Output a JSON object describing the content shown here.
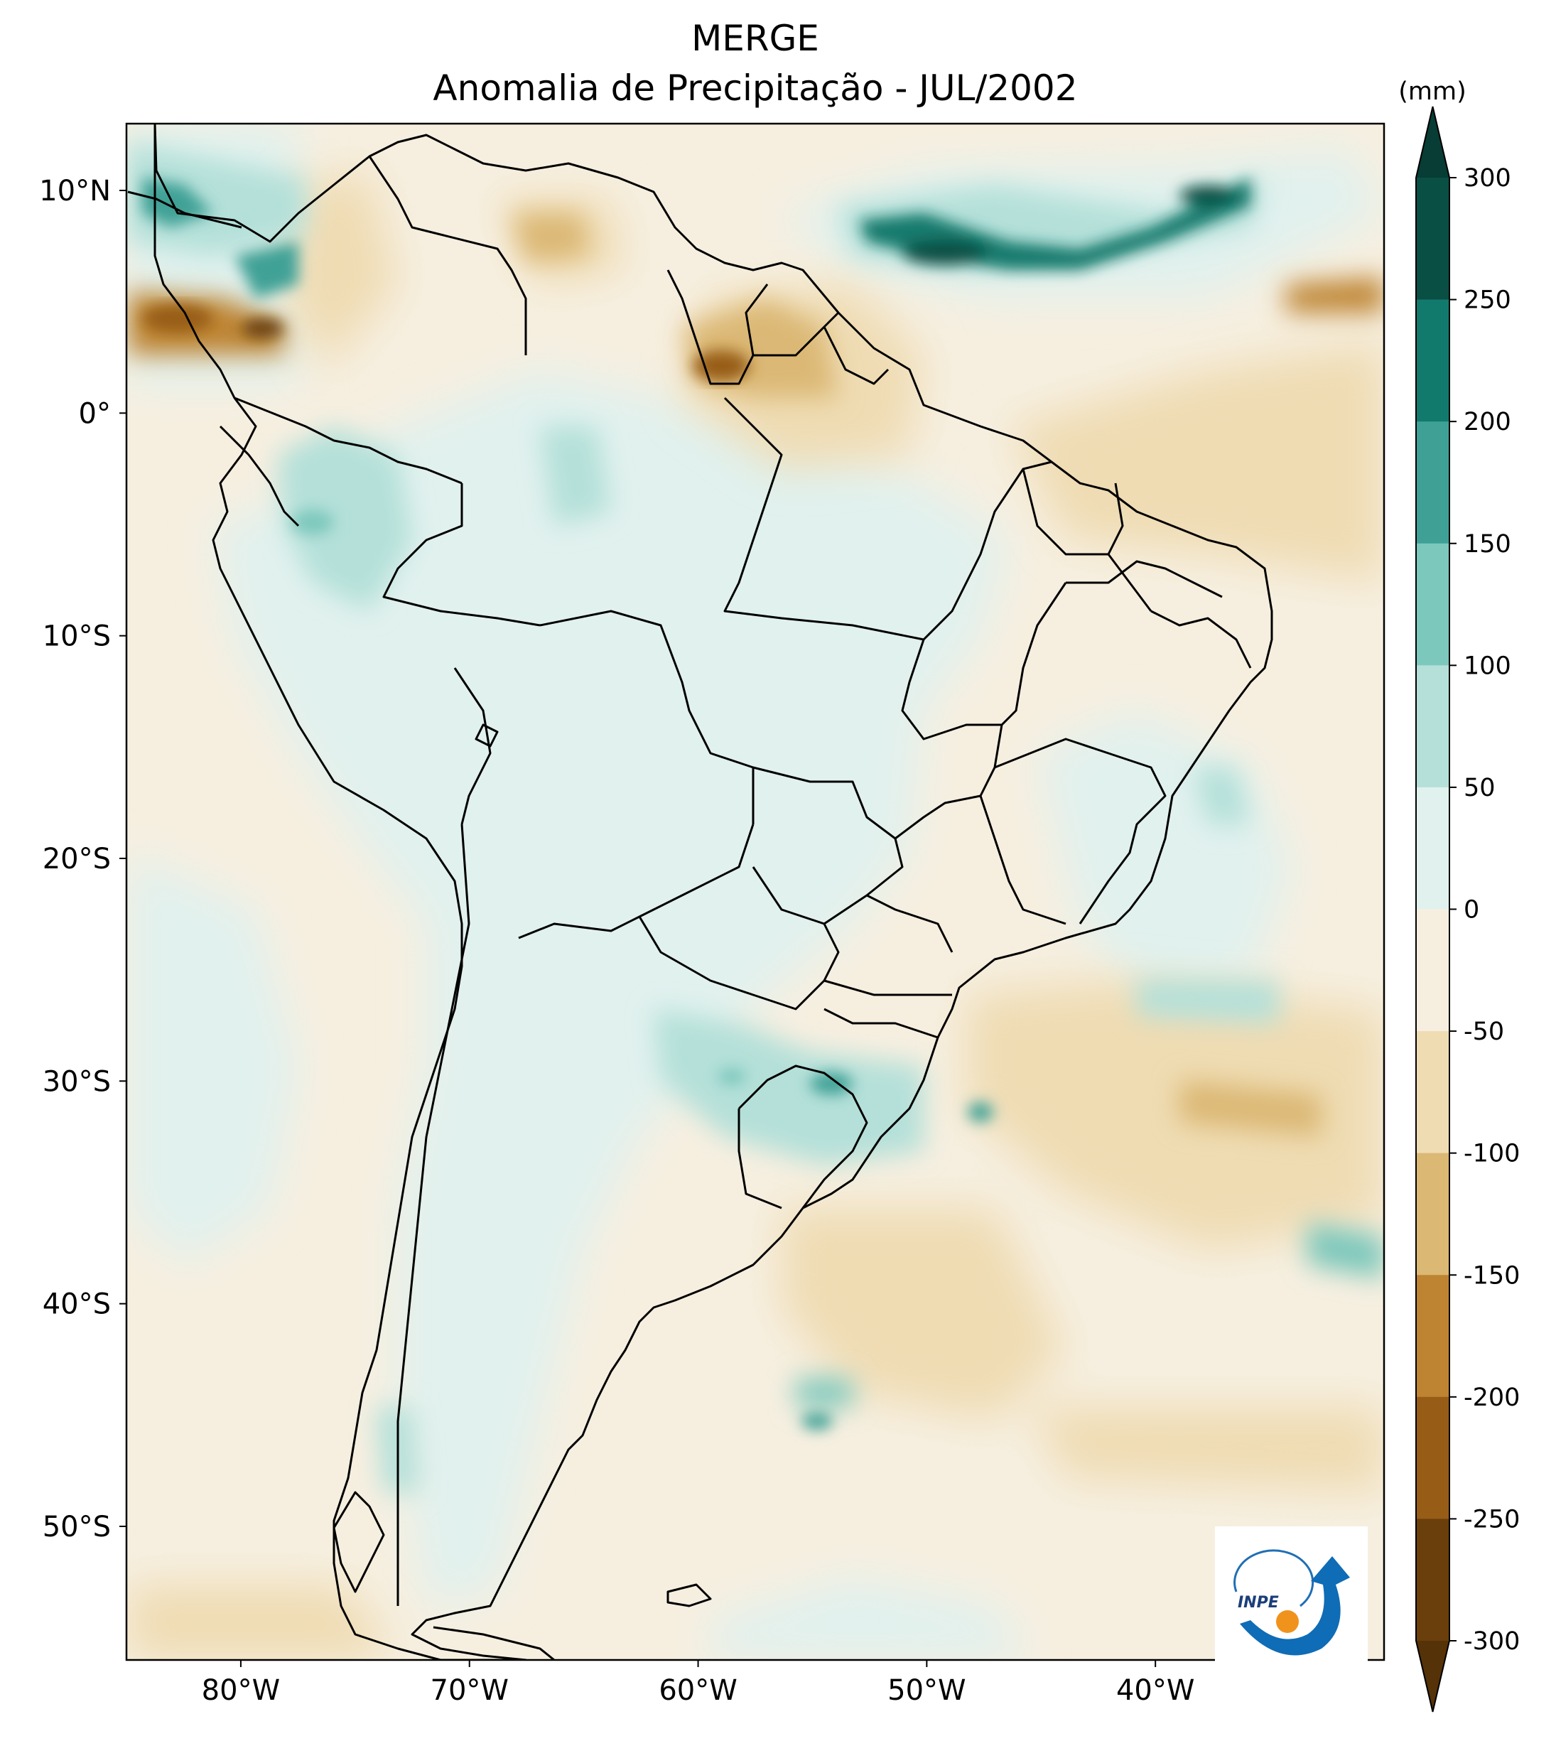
{
  "title": {
    "line1": "MERGE",
    "line2": "Anomalia de Precipitação - JUL/2002"
  },
  "map": {
    "region": "South America",
    "extent_lon": [
      -85,
      -30
    ],
    "extent_lat": [
      -56,
      13
    ],
    "lat_ticks": [
      {
        "value": 10,
        "label": "10°N"
      },
      {
        "value": 0,
        "label": "0°"
      },
      {
        "value": -10,
        "label": "10°S"
      },
      {
        "value": -20,
        "label": "20°S"
      },
      {
        "value": -30,
        "label": "30°S"
      },
      {
        "value": -40,
        "label": "40°S"
      },
      {
        "value": -50,
        "label": "50°S"
      }
    ],
    "lon_ticks": [
      {
        "value": -80,
        "label": "80°W"
      },
      {
        "value": -70,
        "label": "70°W"
      },
      {
        "value": -60,
        "label": "60°W"
      },
      {
        "value": -50,
        "label": "50°W"
      },
      {
        "value": -40,
        "label": "40°W"
      }
    ],
    "logo_text": "INPE"
  },
  "colorbar": {
    "unit": "(mm)",
    "extend": "both",
    "levels": [
      300,
      250,
      200,
      150,
      100,
      50,
      0,
      -50,
      -100,
      -150,
      -200,
      -250,
      -300
    ],
    "labels": [
      "300",
      "250",
      "200",
      "150",
      "100",
      "50",
      "0",
      "-50",
      "-100",
      "-150",
      "-200",
      "-250",
      "-300"
    ],
    "colors": [
      "#0a4f44",
      "#127a6d",
      "#3fa196",
      "#7dc8bc",
      "#b4e0d9",
      "#e1f1ee",
      "#f6efe0",
      "#efdcb3",
      "#dbb874",
      "#be8432",
      "#975d17",
      "#6a3f0b"
    ],
    "over_color": "#073d34",
    "under_color": "#553207"
  },
  "chart_data": {
    "type": "heatmap",
    "title": "MERGE — Anomalia de Precipitação - JUL/2002",
    "value_unit": "(mm)",
    "lon_range": [
      -85,
      -30
    ],
    "lat_range": [
      -56,
      13
    ],
    "color_levels": [
      -300,
      -250,
      -200,
      -150,
      -100,
      -50,
      0,
      50,
      100,
      150,
      200,
      250,
      300
    ],
    "regions": [
      {
        "desc": "Atlantic ITCZ band",
        "lon": [
          -50,
          -35
        ],
        "lat": [
          4,
          10
        ],
        "approx_value_mm": 250
      },
      {
        "desc": "Eastern Pacific off Colombia/Panama",
        "lon": [
          -85,
          -78
        ],
        "lat": [
          3,
          11
        ],
        "approx_value_mm": 150
      },
      {
        "desc": "Far eastern Pacific coast",
        "lon": [
          -85,
          -78
        ],
        "lat": [
          3,
          5
        ],
        "approx_value_mm": -150
      },
      {
        "desc": "Guianas / northern Brazil",
        "lon": [
          -62,
          -50
        ],
        "lat": [
          0,
          5
        ],
        "approx_value_mm": -100
      },
      {
        "desc": "Venezuela plains",
        "lon": [
          -68,
          -62
        ],
        "lat": [
          6,
          9
        ],
        "approx_value_mm": -75
      },
      {
        "desc": "Western Amazon / Peru",
        "lon": [
          -78,
          -68
        ],
        "lat": [
          -10,
          -2
        ],
        "approx_value_mm": 75
      },
      {
        "desc": "Southern Brazil / Uruguay / NE Argentina",
        "lon": [
          -60,
          -50
        ],
        "lat": [
          -34,
          -27
        ],
        "approx_value_mm": 75
      },
      {
        "desc": "South Atlantic east of Brazil",
        "lon": [
          -50,
          -30
        ],
        "lat": [
          -40,
          -25
        ],
        "approx_value_mm": -60
      },
      {
        "desc": "Southern Patagonia / Pacific south",
        "lon": [
          -85,
          -70
        ],
        "lat": [
          -56,
          -52
        ],
        "approx_value_mm": -60
      }
    ]
  }
}
